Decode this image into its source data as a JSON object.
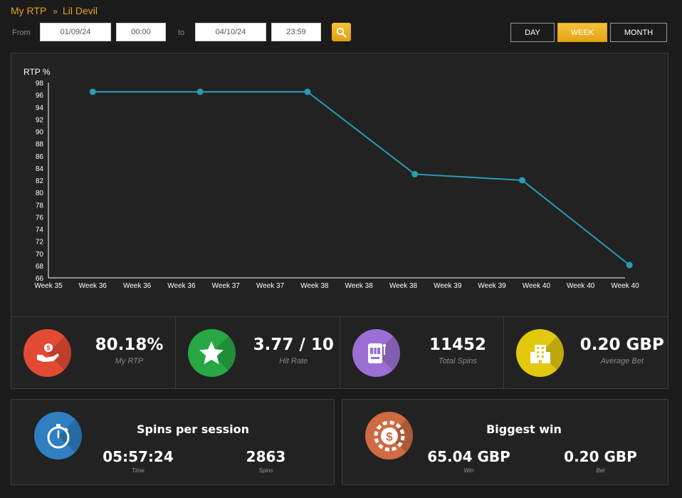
{
  "breadcrumb": {
    "parent": "My RTP",
    "separator": "»",
    "current": "Lil Devil"
  },
  "filters": {
    "from_label": "From",
    "from_date": "01/09/24",
    "from_time": "00:00",
    "to_label": "to",
    "to_date": "04/10/24",
    "to_time": "23:59",
    "search_icon": "search-icon"
  },
  "periods": [
    {
      "label": "DAY",
      "active": false
    },
    {
      "label": "WEEK",
      "active": true
    },
    {
      "label": "MONTH",
      "active": false
    }
  ],
  "colors": {
    "accent": "#e5a514",
    "line": "#2a9cb4",
    "background": "#1b1b1b",
    "panel": "#222222"
  },
  "chart_data": {
    "type": "line",
    "ylabel": "RTP %",
    "ylim": [
      66,
      98
    ],
    "yticks": [
      98,
      96,
      94,
      92,
      90,
      88,
      86,
      84,
      82,
      80,
      78,
      76,
      74,
      72,
      70,
      68,
      66
    ],
    "xticks": [
      "Week 35",
      "Week 36",
      "Week 36",
      "Week 36",
      "Week 37",
      "Week 37",
      "Week 38",
      "Week 38",
      "Week 38",
      "Week 39",
      "Week 39",
      "Week 40",
      "Week 40",
      "Week 40"
    ],
    "points": [
      {
        "x": 1,
        "y": 96.5
      },
      {
        "x": 3.42,
        "y": 96.5
      },
      {
        "x": 5.84,
        "y": 96.5
      },
      {
        "x": 8.26,
        "y": 83
      },
      {
        "x": 10.68,
        "y": 82
      },
      {
        "x": 13.1,
        "y": 68.1
      }
    ],
    "grid": false,
    "legend": "none"
  },
  "stats": [
    {
      "value": "80.18%",
      "label": "My RTP",
      "icon": "hand-coin-icon",
      "color": "#e34a33"
    },
    {
      "value": "3.77 / 10",
      "label": "Hit Rate",
      "icon": "star-icon",
      "color": "#27a844"
    },
    {
      "value": "11452",
      "label": "Total Spins",
      "icon": "slot-machine-icon",
      "color": "#9b6fd3"
    },
    {
      "value": "0.20 GBP",
      "label": "Average Bet",
      "icon": "casino-building-icon",
      "color": "#e2c80f"
    }
  ],
  "session": {
    "title": "Spins per session",
    "time_value": "05:57:24",
    "time_label": "Time",
    "spins_value": "2863",
    "spins_label": "Spins",
    "icon": "stopwatch-icon",
    "color": "#2f7fc1"
  },
  "biggest_win": {
    "title": "Biggest win",
    "win_value": "65.04 GBP",
    "win_label": "Win",
    "bet_value": "0.20 GBP",
    "bet_label": "Bet",
    "icon": "casino-chip-icon",
    "color": "#cf6a43"
  }
}
